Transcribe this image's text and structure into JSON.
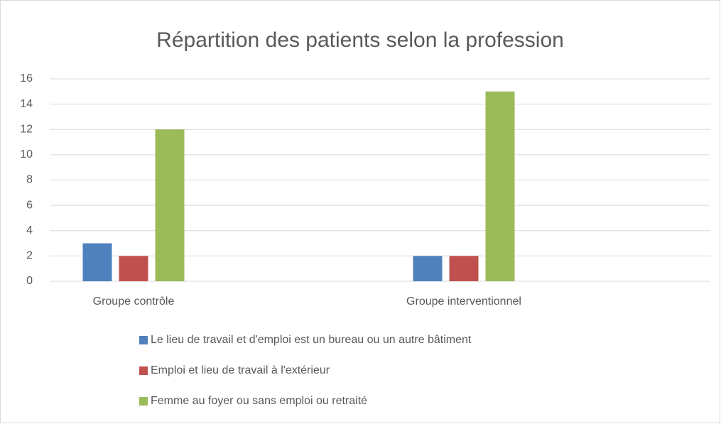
{
  "chart_data": {
    "type": "bar",
    "title": "Répartition des patients selon la profession",
    "categories": [
      "Groupe contrôle",
      "Groupe interventionnel"
    ],
    "series": [
      {
        "name": "Le lieu de travail et d'emploi est un bureau ou un autre bâtiment",
        "color": "#4f81bd",
        "values": [
          3,
          2
        ]
      },
      {
        "name": "Emploi et lieu de travail à l'extérieur",
        "color": "#c0504d",
        "values": [
          2,
          2
        ]
      },
      {
        "name": "Femme au foyer ou sans emploi ou retraité",
        "color": "#9bbb59",
        "values": [
          12,
          15
        ]
      }
    ],
    "ylim": [
      0,
      16
    ],
    "yticks": [
      0,
      2,
      4,
      6,
      8,
      10,
      12,
      14,
      16
    ],
    "grid": true,
    "legend": "bottom"
  }
}
